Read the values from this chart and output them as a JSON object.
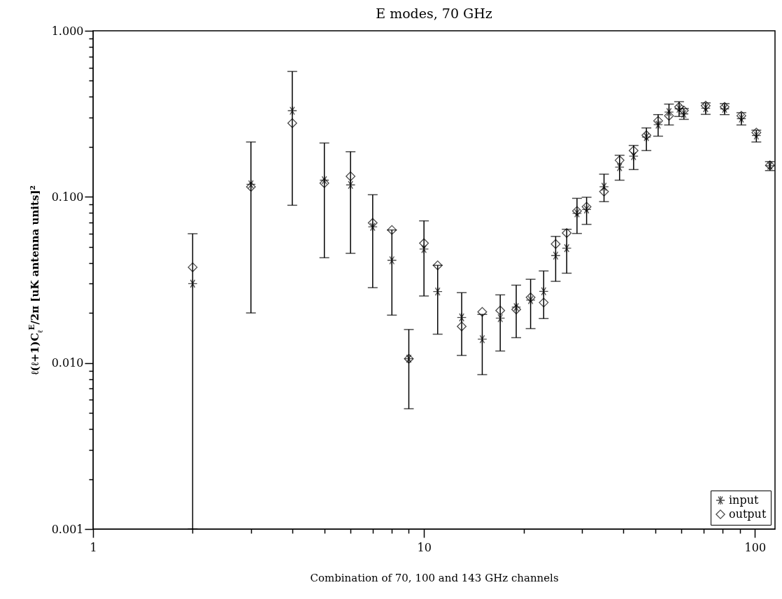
{
  "chart_data": {
    "type": "scatter",
    "title": "E modes, 70 GHz",
    "xlabel": "Combination of 70, 100 and 143 GHz channels",
    "ylabel": "ℓ(ℓ+1)C$_{ℓ}$$^{E}$/2π [uK antenna units]²",
    "x": [
      2,
      3,
      4,
      5,
      6,
      7,
      8,
      9,
      10,
      11,
      13,
      15,
      17,
      19,
      21,
      23,
      25,
      27,
      29,
      31,
      35,
      39,
      43,
      47,
      51,
      55,
      59,
      61,
      71,
      81,
      91,
      101,
      111
    ],
    "series": [
      {
        "name": "input",
        "color": "#000000",
        "marker": "cross",
        "values": [
          0.03,
          0.119,
          0.33,
          0.126,
          0.118,
          0.066,
          0.0415,
          0.0106,
          0.0485,
          0.0269,
          0.0188,
          0.0139,
          0.0186,
          0.0217,
          0.0239,
          0.027,
          0.0443,
          0.0491,
          0.0796,
          0.084,
          0.115,
          0.151,
          0.176,
          0.229,
          0.272,
          0.324,
          0.339,
          0.316,
          0.342,
          0.339,
          0.296,
          0.234,
          0.154
        ],
        "errors": [
          [
            0.001,
            0.06
          ],
          [
            0.02,
            0.214
          ],
          [
            0.089,
            0.569
          ],
          [
            0.043,
            0.211
          ],
          [
            0.0457,
            0.187
          ],
          [
            0.0284,
            0.103
          ],
          [
            0.0194,
            0.0632
          ],
          [
            0.0053,
            0.0159
          ],
          [
            0.0253,
            0.0717
          ],
          [
            0.0149,
            0.0387
          ],
          [
            0.0111,
            0.0265
          ],
          [
            0.0085,
            0.0196
          ],
          [
            0.0118,
            0.0257
          ],
          [
            0.0142,
            0.0294
          ],
          [
            0.0161,
            0.0319
          ],
          [
            0.0185,
            0.0358
          ],
          [
            0.031,
            0.0578
          ],
          [
            0.0347,
            0.0638
          ],
          [
            0.0602,
            0.098
          ],
          [
            0.0683,
            0.0995
          ],
          [
            0.0936,
            0.137
          ],
          [
            0.126,
            0.178
          ],
          [
            0.146,
            0.204
          ],
          [
            0.19,
            0.26
          ],
          [
            0.232,
            0.313
          ],
          [
            0.271,
            0.362
          ],
          [
            0.305,
            0.374
          ],
          [
            0.293,
            0.34
          ],
          [
            0.314,
            0.368
          ],
          [
            0.313,
            0.364
          ],
          [
            0.271,
            0.321
          ],
          [
            0.214,
            0.252
          ],
          [
            0.144,
            0.163
          ]
        ]
      },
      {
        "name": "output",
        "color": "#000000",
        "marker": "diamond",
        "values": [
          0.0377,
          0.115,
          0.278,
          0.121,
          0.133,
          0.0697,
          0.0632,
          0.0106,
          0.0526,
          0.0387,
          0.0166,
          0.0203,
          0.0207,
          0.021,
          0.0248,
          0.0231,
          0.052,
          0.0606,
          0.0823,
          0.0872,
          0.1076,
          0.166,
          0.19,
          0.235,
          0.287,
          0.308,
          0.348,
          0.331,
          0.354,
          0.348,
          0.308,
          0.244,
          0.155
        ]
      }
    ],
    "log": "xy",
    "xlim": [
      1,
      115
    ],
    "ylim": [
      0.001,
      1
    ],
    "xticks": [
      {
        "value": 1,
        "label": "1"
      },
      {
        "value": 2,
        "label": null
      },
      {
        "value": 3,
        "label": null
      },
      {
        "value": 4,
        "label": null
      },
      {
        "value": 5,
        "label": null
      },
      {
        "value": 6,
        "label": null
      },
      {
        "value": 7,
        "label": null
      },
      {
        "value": 8,
        "label": null
      },
      {
        "value": 9,
        "label": null
      },
      {
        "value": 10,
        "label": "10"
      },
      {
        "value": 20,
        "label": null
      },
      {
        "value": 30,
        "label": null
      },
      {
        "value": 40,
        "label": null
      },
      {
        "value": 50,
        "label": null
      },
      {
        "value": 60,
        "label": null
      },
      {
        "value": 70,
        "label": null
      },
      {
        "value": 80,
        "label": null
      },
      {
        "value": 90,
        "label": null
      },
      {
        "value": 100,
        "label": "100"
      }
    ],
    "yticks": [
      0.001,
      {
        "value": 0.002,
        "label": null
      },
      {
        "value": 0.003,
        "label": null
      },
      {
        "value": 0.004,
        "label": null
      },
      {
        "value": 0.005,
        "label": null
      },
      {
        "value": 0.006,
        "label": null
      },
      {
        "value": 0.007,
        "label": null
      },
      {
        "value": 0.008,
        "label": null
      },
      {
        "value": 0.009,
        "label": null
      },
      {
        "value": 0.01,
        "label": "0.010"
      },
      {
        "value": 0.02,
        "label": null
      },
      {
        "value": 0.03,
        "label": null
      },
      {
        "value": 0.04,
        "label": null
      },
      {
        "value": 0.05,
        "label": null
      },
      {
        "value": 0.06,
        "label": null
      },
      {
        "value": 0.07,
        "label": null
      },
      {
        "value": 0.08,
        "label": null
      },
      {
        "value": 0.09,
        "label": null
      },
      {
        "value": 0.1,
        "label": "0.100"
      },
      {
        "value": 0.2,
        "label": null
      },
      {
        "value": 0.3,
        "label": null
      },
      {
        "value": 0.4,
        "label": null
      },
      {
        "value": 0.5,
        "label": null
      },
      {
        "value": 0.6,
        "label": null
      },
      {
        "value": 0.7,
        "label": null
      },
      {
        "value": 0.8,
        "label": null
      },
      {
        "value": 0.9,
        "label": null
      },
      {
        "value": 1,
        "label": "1.000"
      }
    ],
    "grid": false,
    "legend": "bottom right"
  }
}
